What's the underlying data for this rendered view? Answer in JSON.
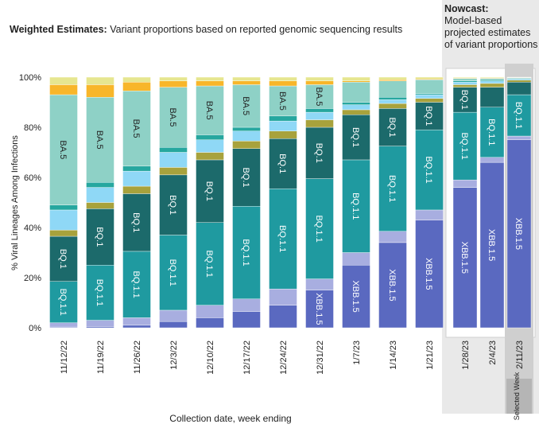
{
  "chart_data": [
    {
      "type": "bar",
      "stacked": true,
      "title": "Weighted Estimates:",
      "subtitle": "Variant proportions based on reported genomic sequencing results",
      "ylabel": "% Viral Lineages Among Infections",
      "xlabel": "Collection date, week ending",
      "categories": [
        "11/12/22",
        "11/19/22",
        "11/26/22",
        "12/3/22",
        "12/10/22",
        "12/17/22",
        "12/24/22",
        "12/31/22",
        "1/7/23",
        "1/14/23",
        "1/21/23"
      ],
      "ylim": [
        0,
        100
      ],
      "yticks": [
        {
          "value": 0,
          "label": "0%"
        },
        {
          "value": 20,
          "label": "20%"
        },
        {
          "value": 40,
          "label": "40%"
        },
        {
          "value": 60,
          "label": "60%"
        },
        {
          "value": 80,
          "label": "80%"
        },
        {
          "value": 100,
          "label": "100%"
        }
      ],
      "series": [
        {
          "name": "XBB.1.5",
          "color": "#5a69c0",
          "values": [
            0.3,
            0.5,
            1,
            2.5,
            4,
            6.5,
            9,
            15,
            25,
            34,
            43
          ]
        },
        {
          "color": "#a8aee0",
          "values": [
            1.7,
            2.5,
            3,
            4.5,
            5,
            5,
            6.5,
            4.5,
            5,
            4.5,
            4
          ]
        },
        {
          "name": "BQ.1.1",
          "color": "#1f9aa0",
          "values": [
            16.5,
            22,
            26.5,
            30,
            33,
            37,
            40,
            40,
            37,
            34,
            32
          ]
        },
        {
          "name": "BQ.1",
          "color": "#1c6a6b",
          "values": [
            18,
            22.5,
            23,
            24,
            25,
            23,
            20,
            20.5,
            18,
            15,
            11
          ]
        },
        {
          "color": "#a8a23c",
          "values": [
            2.5,
            2.5,
            3,
            3,
            3,
            3,
            3,
            3,
            2,
            2,
            1.5
          ]
        },
        {
          "color": "#8fd8f6",
          "values": [
            8,
            6,
            6,
            6,
            5,
            4,
            4,
            3,
            2,
            1.5,
            1.5
          ]
        },
        {
          "color": "#26a79f",
          "values": [
            2,
            2,
            2,
            2,
            2,
            1.5,
            2,
            1.5,
            1,
            1,
            0.5
          ]
        },
        {
          "name": "BA.5",
          "color": "#8ed1c6",
          "values": [
            44,
            34,
            30,
            24,
            19.5,
            17,
            12,
            9.5,
            8,
            6.5,
            5.5
          ]
        },
        {
          "color": "#f8b62a",
          "values": [
            4,
            5,
            3.5,
            2.5,
            2,
            1.5,
            2,
            1.5,
            0.5,
            0.5,
            0.3
          ]
        },
        {
          "color": "#e6e690",
          "values": [
            3,
            3,
            2,
            1.5,
            1.5,
            1.5,
            1.5,
            1.5,
            1.5,
            1,
            0.7
          ]
        }
      ]
    },
    {
      "type": "bar",
      "stacked": true,
      "title": "Nowcast:",
      "subtitle": "Model-based projected estimates of variant proportions",
      "annotation": "Selected Week",
      "selected": "2/11/23",
      "categories": [
        "1/28/23",
        "2/4/23",
        "2/11/23"
      ],
      "ylim": [
        0,
        100
      ],
      "series": [
        {
          "name": "XBB.1.5",
          "color": "#5a69c0",
          "values": [
            56,
            66,
            75
          ]
        },
        {
          "color": "#a8aee0",
          "values": [
            3,
            2,
            1.5
          ]
        },
        {
          "name": "BQ.1.1",
          "color": "#1f9aa0",
          "values": [
            27,
            20,
            16.5
          ]
        },
        {
          "name": "BQ.1",
          "color": "#1c6a6b",
          "values": [
            10,
            8,
            5
          ]
        },
        {
          "color": "#a8a23c",
          "values": [
            1,
            1.5,
            0.8
          ]
        },
        {
          "color": "#8fd8f6",
          "values": [
            1,
            1,
            0.4
          ]
        },
        {
          "color": "#26a79f",
          "values": [
            0.5,
            0.5,
            0.3
          ]
        },
        {
          "name": "BA.5",
          "color": "#8ed1c6",
          "values": [
            1,
            0.5,
            0.3
          ]
        },
        {
          "color": "#f8b62a",
          "values": [
            0.2,
            0.2,
            0.1
          ]
        },
        {
          "color": "#e6e690",
          "values": [
            0.3,
            0.3,
            0.1
          ]
        }
      ]
    }
  ]
}
